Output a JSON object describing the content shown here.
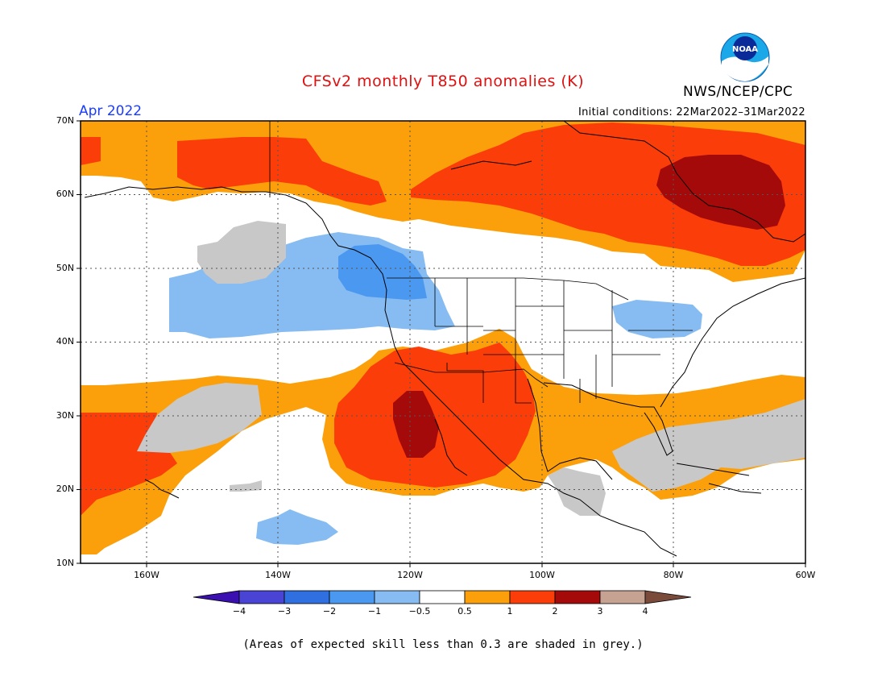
{
  "title": "CFSv2 monthly T850 anomalies (K)",
  "agency": "NWS/NCEP/CPC",
  "logo_text": "NOAA",
  "valid_month": "Apr 2022",
  "initial_conditions": "Initial conditions: 22Mar2022–31Mar2022",
  "footnote": "(Areas of expected skill less than 0.3 are shaded in grey.)",
  "map": {
    "lat_labels": [
      "70N",
      "60N",
      "50N",
      "40N",
      "30N",
      "20N",
      "10N"
    ],
    "lon_labels": [
      "160W",
      "140W",
      "120W",
      "100W",
      "80W",
      "60W"
    ],
    "extent": {
      "lon": [
        -170,
        -60
      ],
      "lat": [
        10,
        70
      ]
    }
  },
  "colorbar": {
    "labels": [
      "−4",
      "−3",
      "−2",
      "−1",
      "−0.5",
      "0.5",
      "1",
      "2",
      "3",
      "4"
    ],
    "colors": [
      "#3a10b0",
      "#4a44d4",
      "#2f6fe0",
      "#4a98f0",
      "#86bcf2",
      "#ffffff",
      "#fba00a",
      "#fb3d0a",
      "#a40a0a",
      "#c6a292",
      "#7a4a3a"
    ],
    "skill_grey": "#c8c8c8"
  }
}
